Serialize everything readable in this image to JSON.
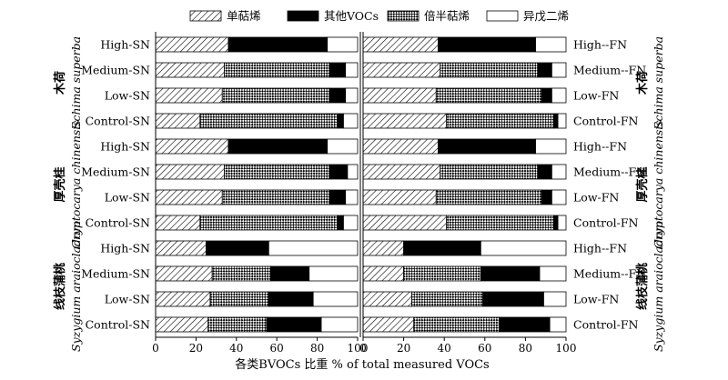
{
  "chart_data": {
    "type": "bar",
    "orientation": "horizontal",
    "stacked": true,
    "xlabel": "各类BVOCs 比重 % of total measured VOCs",
    "xlim": [
      0,
      100
    ],
    "xticks": [
      "0",
      "20",
      "40",
      "60",
      "80",
      "100"
    ],
    "legend": {
      "placement": "top",
      "items": [
        {
          "label": "单萜烯",
          "fill": "diagonal-hatch"
        },
        {
          "label": "其他VOCs",
          "fill": "#000000"
        },
        {
          "label": "倍半萜烯",
          "fill": "diamond-check"
        },
        {
          "label": "异戊二烯",
          "fill": "#ffffff"
        }
      ]
    },
    "species": [
      {
        "cn": "木荷",
        "latin": "Schima superba"
      },
      {
        "cn": "厚壳桂",
        "latin": "Cryptocarya chinensis"
      },
      {
        "cn": "线枝蒲桃",
        "latin": "Syzygium araiocladum"
      }
    ],
    "series_order": [
      "单萜烯",
      "倍半萜烯",
      "其他VOCs",
      "异戊二烯"
    ],
    "panels": [
      {
        "categories": [
          "High-SN",
          "Medium-SN",
          "Low-SN",
          "Control-SN",
          "High-SN",
          "Medium-SN",
          "Low-SN",
          "Control-SN",
          "High-SN",
          "Medium-SN",
          "Low-SN",
          "Control-SN"
        ],
        "series": [
          {
            "name": "单萜烯",
            "values": [
              36,
              34,
              33,
              22,
              36,
              34,
              33,
              22,
              25,
              28,
              27,
              26
            ]
          },
          {
            "name": "倍半萜烯",
            "values": [
              0,
              52,
              53,
              68,
              0,
              52,
              53,
              68,
              0,
              29,
              29,
              29
            ]
          },
          {
            "name": "其他VOCs",
            "values": [
              49,
              8,
              8,
              3,
              49,
              9,
              8,
              3,
              31,
              19,
              22,
              27
            ]
          },
          {
            "name": "异戊二烯",
            "values": [
              15,
              6,
              6,
              7,
              15,
              5,
              6,
              7,
              44,
              24,
              22,
              18
            ]
          }
        ]
      },
      {
        "categories": [
          "High--FN",
          "Medium--FN",
          "Low-FN",
          "Control-FN",
          "High--FN",
          "Medium--FN",
          "Low-FN",
          "Control-FN",
          "High--FN",
          "Medium--FN",
          "Low-FN",
          "Control-FN"
        ],
        "series": [
          {
            "name": "单萜烯",
            "values": [
              37,
              38,
              36,
              41,
              37,
              38,
              36,
              41,
              20,
              20,
              24,
              25
            ]
          },
          {
            "name": "倍半萜烯",
            "values": [
              0,
              48,
              52,
              53,
              0,
              48,
              52,
              53,
              0,
              38,
              35,
              42
            ]
          },
          {
            "name": "其他VOCs",
            "values": [
              48,
              7,
              5,
              2,
              48,
              7,
              5,
              2,
              38,
              29,
              30,
              25
            ]
          },
          {
            "name": "异戊二烯",
            "values": [
              15,
              7,
              7,
              4,
              15,
              7,
              7,
              4,
              42,
              13,
              11,
              8
            ]
          }
        ]
      }
    ]
  }
}
